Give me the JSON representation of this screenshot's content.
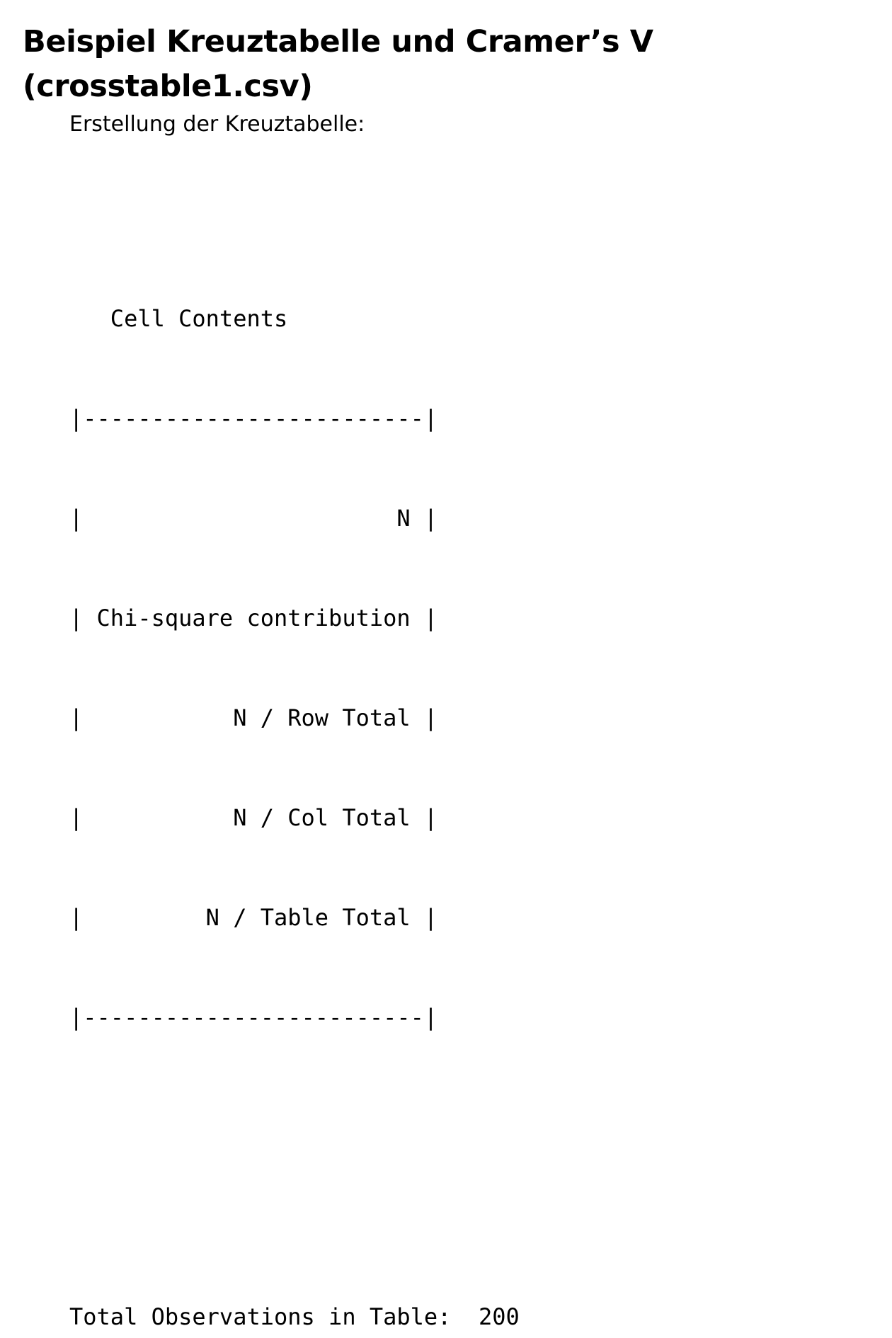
{
  "slide": {
    "title_line1": "Beispiel Kreuztabelle und Cramer’s V",
    "title_line2": "(crosstable1.csv)",
    "intro": "Erstellung der Kreuztabelle:"
  },
  "output": {
    "lines": [
      "   Cell Contents",
      "|-------------------------|",
      "|                       N |",
      "| Chi-square contribution |",
      "|           N / Row Total |",
      "|           N / Col Total |",
      "|         N / Table Total |",
      "|-------------------------|",
      "",
      "",
      "Total Observations in Table:  200"
    ]
  }
}
